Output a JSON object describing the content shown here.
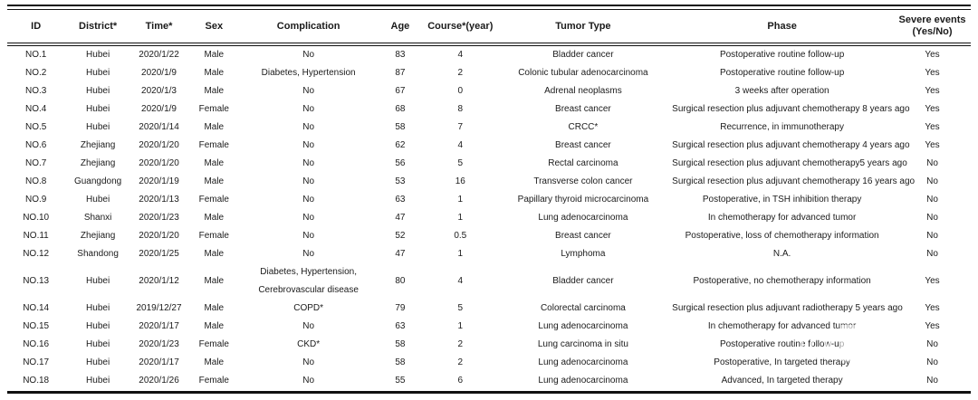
{
  "table": {
    "columns": [
      {
        "key": "id",
        "label": "ID"
      },
      {
        "key": "district",
        "label": "District*"
      },
      {
        "key": "time",
        "label": "Time*"
      },
      {
        "key": "sex",
        "label": "Sex"
      },
      {
        "key": "complication",
        "label": "Complication"
      },
      {
        "key": "age",
        "label": "Age"
      },
      {
        "key": "course",
        "label": "Course*(year)"
      },
      {
        "key": "tumor",
        "label": "Tumor Type"
      },
      {
        "key": "phase",
        "label": "Phase"
      },
      {
        "key": "severe",
        "label": "Severe events",
        "label2": "(Yes/No)"
      }
    ],
    "rows": [
      {
        "id": "NO.1",
        "district": "Hubei",
        "time": "2020/1/22",
        "sex": "Male",
        "complication": "No",
        "age": "83",
        "course": "4",
        "tumor": "Bladder cancer",
        "phase": "Postoperative routine follow-up",
        "severe": "Yes"
      },
      {
        "id": "NO.2",
        "district": "Hubei",
        "time": "2020/1/9",
        "sex": "Male",
        "complication": "Diabetes, Hypertension",
        "age": "87",
        "course": "2",
        "tumor": "Colonic tubular adenocarcinoma",
        "phase": "Postoperative routine follow-up",
        "severe": "Yes"
      },
      {
        "id": "NO.3",
        "district": "Hubei",
        "time": "2020/1/3",
        "sex": "Male",
        "complication": "No",
        "age": "67",
        "course": "0",
        "tumor": "Adrenal neoplasms",
        "phase": "3 weeks after operation",
        "severe": "Yes"
      },
      {
        "id": "NO.4",
        "district": "Hubei",
        "time": "2020/1/9",
        "sex": "Female",
        "complication": "No",
        "age": "68",
        "course": "8",
        "tumor": "Breast cancer",
        "phase": "Surgical resection plus adjuvant chemotherapy 8 years ago",
        "severe": "Yes"
      },
      {
        "id": "NO.5",
        "district": "Hubei",
        "time": "2020/1/14",
        "sex": "Male",
        "complication": "No",
        "age": "58",
        "course": "7",
        "tumor": "CRCC*",
        "phase": "Recurrence, in immunotherapy",
        "severe": "Yes"
      },
      {
        "id": "NO.6",
        "district": "Zhejiang",
        "time": "2020/1/20",
        "sex": "Female",
        "complication": "No",
        "age": "62",
        "course": "4",
        "tumor": "Breast cancer",
        "phase": "Surgical resection plus adjuvant chemotherapy 4 years ago",
        "severe": "Yes"
      },
      {
        "id": "NO.7",
        "district": "Zhejiang",
        "time": "2020/1/20",
        "sex": "Male",
        "complication": "No",
        "age": "56",
        "course": "5",
        "tumor": "Rectal carcinoma",
        "phase": "Surgical resection plus adjuvant chemotherapy5 years ago",
        "severe": "No"
      },
      {
        "id": "NO.8",
        "district": "Guangdong",
        "time": "2020/1/19",
        "sex": "Male",
        "complication": "No",
        "age": "53",
        "course": "16",
        "tumor": "Transverse colon cancer",
        "phase": "Surgical resection plus adjuvant chemotherapy 16 years ago",
        "severe": "No"
      },
      {
        "id": "NO.9",
        "district": "Hubei",
        "time": "2020/1/13",
        "sex": "Female",
        "complication": "No",
        "age": "63",
        "course": "1",
        "tumor": "Papillary thyroid microcarcinoma",
        "phase": "Postoperative, in TSH inhibition therapy",
        "severe": "No"
      },
      {
        "id": "NO.10",
        "district": "Shanxi",
        "time": "2020/1/23",
        "sex": "Male",
        "complication": "No",
        "age": "47",
        "course": "1",
        "tumor": "Lung adenocarcinoma",
        "phase": "In chemotherapy for advanced tumor",
        "severe": "No"
      },
      {
        "id": "NO.11",
        "district": "Zhejiang",
        "time": "2020/1/20",
        "sex": "Female",
        "complication": "No",
        "age": "52",
        "course": "0.5",
        "tumor": "Breast cancer",
        "phase": "Postoperative, loss of chemotherapy information",
        "severe": "No"
      },
      {
        "id": "NO.12",
        "district": "Shandong",
        "time": "2020/1/25",
        "sex": "Male",
        "complication": "No",
        "age": "47",
        "course": "1",
        "tumor": "Lymphoma",
        "phase": "N.A.",
        "severe": "No"
      },
      {
        "id": "NO.13",
        "district": "Hubei",
        "time": "2020/1/12",
        "sex": "Male",
        "complication": "Diabetes, Hypertension,\nCerebrovascular disease",
        "age": "80",
        "course": "4",
        "tumor": "Bladder cancer",
        "phase": "Postoperative, no chemotherapy information",
        "severe": "Yes"
      },
      {
        "id": "NO.14",
        "district": "Hubei",
        "time": "2019/12/27",
        "sex": "Male",
        "complication": "COPD*",
        "age": "79",
        "course": "5",
        "tumor": "Colorectal carcinoma",
        "phase": "Surgical resection plus adjuvant radiotherapy 5 years ago",
        "severe": "Yes"
      },
      {
        "id": "NO.15",
        "district": "Hubei",
        "time": "2020/1/17",
        "sex": "Male",
        "complication": "No",
        "age": "63",
        "course": "1",
        "tumor": "Lung adenocarcinoma",
        "phase": "In chemotherapy for advanced tumor",
        "severe": "Yes"
      },
      {
        "id": "NO.16",
        "district": "Hubei",
        "time": "2020/1/23",
        "sex": "Female",
        "complication": "CKD*",
        "age": "58",
        "course": "2",
        "tumor": "Lung carcinoma in situ",
        "phase": "Postoperative routine follow-up",
        "severe": "No"
      },
      {
        "id": "NO.17",
        "district": "Hubei",
        "time": "2020/1/17",
        "sex": "Male",
        "complication": "No",
        "age": "58",
        "course": "2",
        "tumor": "Lung adenocarcinoma",
        "phase": "Postoperative, In targeted therapy",
        "severe": "No"
      },
      {
        "id": "NO.18",
        "district": "Hubei",
        "time": "2020/1/26",
        "sex": "Female",
        "complication": "No",
        "age": "55",
        "course": "6",
        "tumor": "Lung adenocarcinoma",
        "phase": "Advanced, In targeted therapy",
        "severe": "No"
      }
    ]
  },
  "watermark": {
    "logo_text": "医咖会"
  },
  "colors": {
    "text": "#1b1b1b",
    "rule": "#111111",
    "background": "#ffffff",
    "watermark": "#ffffff"
  }
}
